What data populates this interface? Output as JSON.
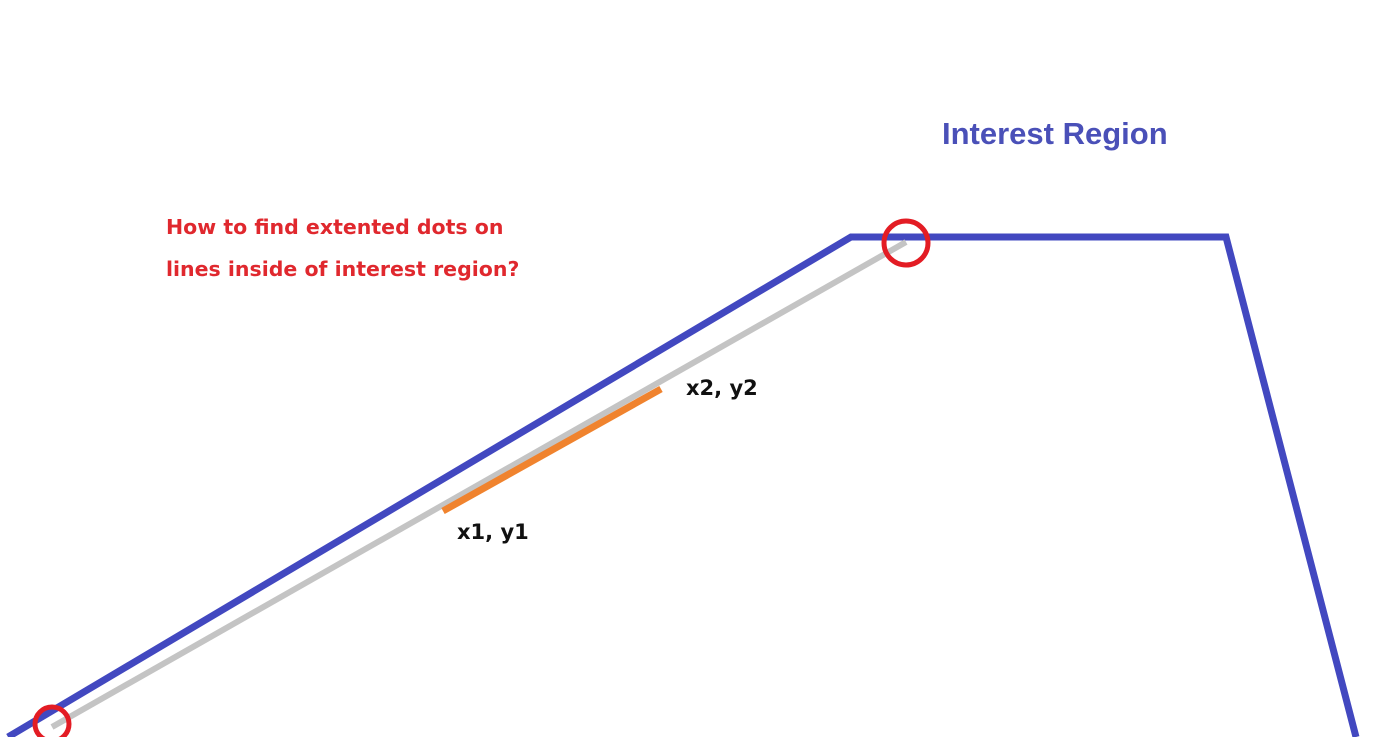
{
  "title": "Interest Region",
  "question": {
    "line1": "How to find extented dots on",
    "line2": "lines inside of interest region?"
  },
  "labels": {
    "p1": "x1, y1",
    "p2": "x2, y2"
  },
  "colors": {
    "region_outline": "#4248c0",
    "extended_line": "#c4c4c4",
    "segment": "#f0832e",
    "markers": "#e31c24",
    "title": "#4a50b8",
    "question": "#e0282e",
    "labels": "#111111"
  }
}
